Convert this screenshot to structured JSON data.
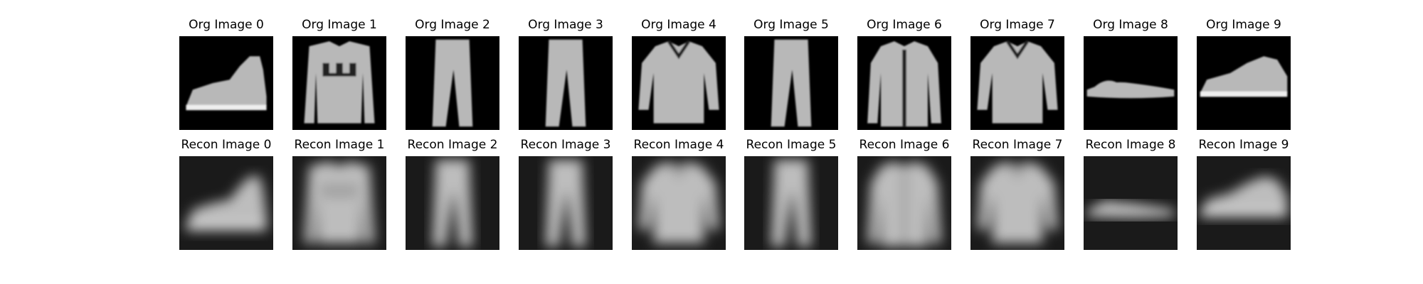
{
  "figure": {
    "rows": [
      {
        "name": "original",
        "titles": [
          "Org Image 0",
          "Org Image 1",
          "Org Image 2",
          "Org Image 3",
          "Org Image 4",
          "Org Image 5",
          "Org Image 6",
          "Org Image 7",
          "Org Image 8",
          "Org Image 9"
        ],
        "depicts": [
          "ankle-boot",
          "pullover",
          "trouser",
          "trouser",
          "shirt",
          "trouser",
          "coat",
          "shirt",
          "sandal",
          "sneaker"
        ],
        "style": "sharp"
      },
      {
        "name": "reconstruction",
        "titles": [
          "Recon Image 0",
          "Recon Image 1",
          "Recon Image 2",
          "Recon Image 3",
          "Recon Image 4",
          "Recon Image 5",
          "Recon Image 6",
          "Recon Image 7",
          "Recon Image 8",
          "Recon Image 9"
        ],
        "depicts": [
          "ankle-boot",
          "pullover",
          "trouser",
          "trouser",
          "shirt",
          "trouser",
          "coat",
          "shirt",
          "sandal",
          "sneaker"
        ],
        "style": "blurred"
      }
    ],
    "colormap": "gray"
  }
}
